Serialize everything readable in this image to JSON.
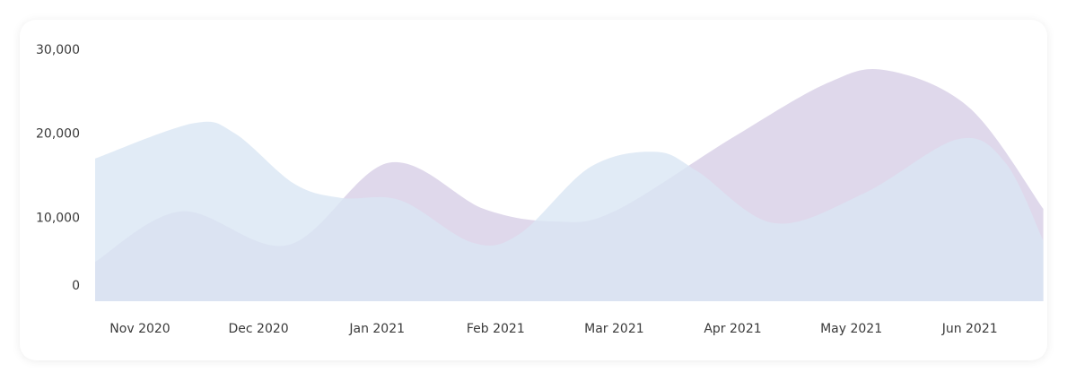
{
  "chart_data": {
    "type": "area",
    "x": [
      "Nov 2020",
      "Dec 2020",
      "Jan 2021",
      "Feb 2021",
      "Mar 2021",
      "Apr 2021",
      "May 2021",
      "Jun 2021"
    ],
    "x_numeric": [
      0.0,
      1.0,
      2.0,
      3.0,
      4.0,
      5.0,
      6.0,
      7.0
    ],
    "yticks": [
      "0",
      "10,000",
      "20,000",
      "30,000"
    ],
    "ylim": [
      0,
      33000
    ],
    "grid": false,
    "series": [
      {
        "color": "#ddd6ea",
        "points": [
          [
            -0.38,
            4700
          ],
          [
            0.35,
            10700
          ],
          [
            1.25,
            6700
          ],
          [
            2.1,
            16500
          ],
          [
            2.9,
            11000
          ],
          [
            3.5,
            9500
          ],
          [
            4.0,
            10700
          ],
          [
            5.0,
            19500
          ],
          [
            5.8,
            26000
          ],
          [
            6.3,
            27500
          ],
          [
            7.0,
            23000
          ],
          [
            7.62,
            11000
          ]
        ]
      },
      {
        "color": "#d9e6f4",
        "points": [
          [
            -0.38,
            17000
          ],
          [
            0.45,
            21200
          ],
          [
            0.8,
            20000
          ],
          [
            1.3,
            14000
          ],
          [
            1.7,
            12300
          ],
          [
            2.2,
            12000
          ],
          [
            2.8,
            7000
          ],
          [
            3.2,
            8000
          ],
          [
            3.8,
            16000
          ],
          [
            4.35,
            17800
          ],
          [
            4.7,
            15500
          ],
          [
            5.35,
            9300
          ],
          [
            6.1,
            12800
          ],
          [
            6.9,
            19300
          ],
          [
            7.3,
            16500
          ],
          [
            7.62,
            7200
          ]
        ]
      }
    ]
  }
}
